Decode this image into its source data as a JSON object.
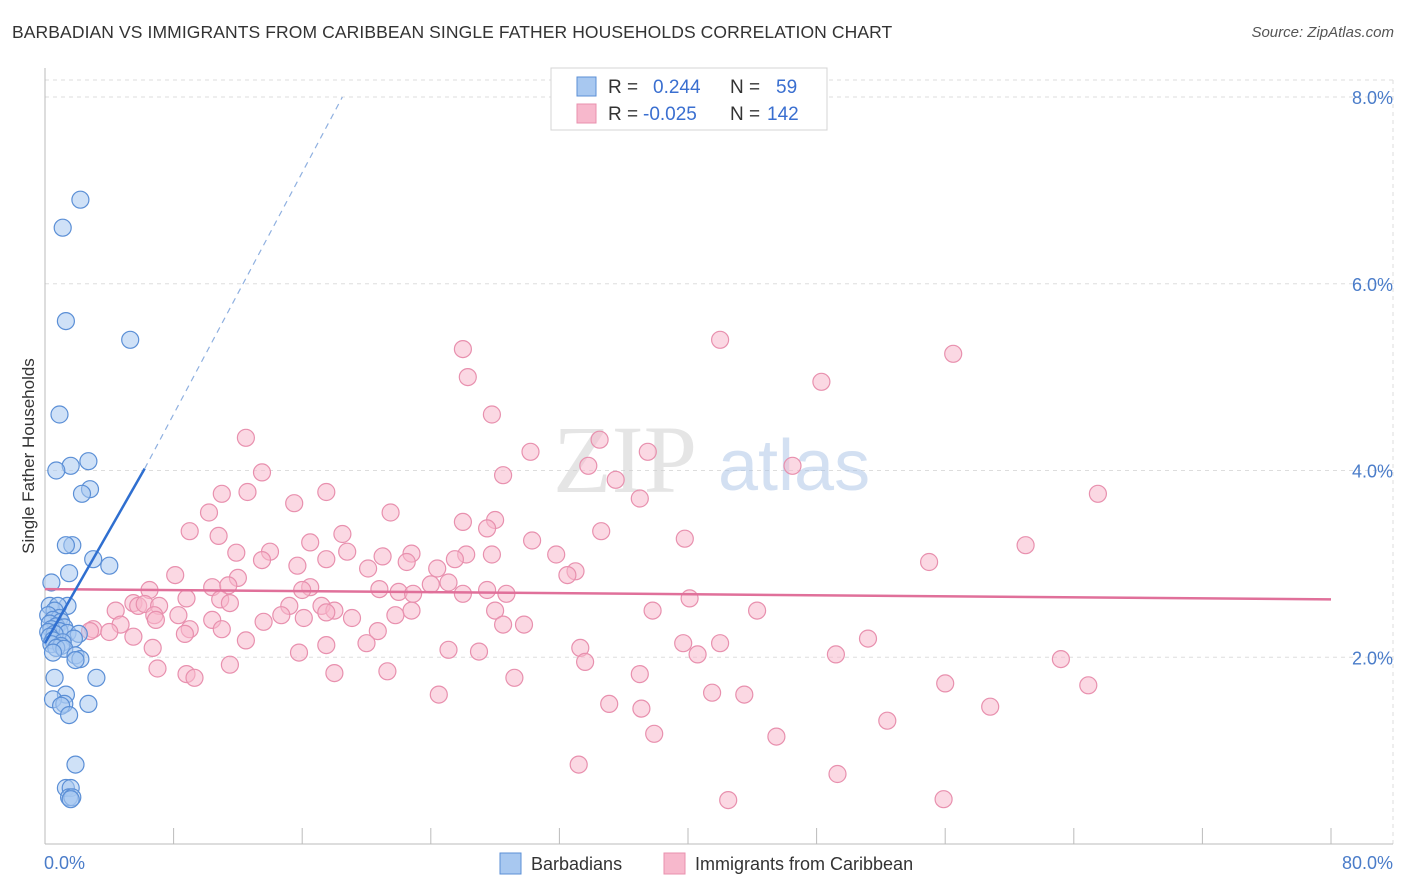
{
  "header": {
    "title": "BARBADIAN VS IMMIGRANTS FROM CARIBBEAN SINGLE FATHER HOUSEHOLDS CORRELATION CHART",
    "source": "Source: ZipAtlas.com"
  },
  "watermark": {
    "zip": "ZIP",
    "atlas": "atlas"
  },
  "legend_top": {
    "rows": [
      {
        "r_label": "R =",
        "r_value": "0.244",
        "n_label": "N =",
        "n_value": "59"
      },
      {
        "r_label": "R =",
        "r_value": "-0.025",
        "n_label": "N =",
        "n_value": "142"
      }
    ]
  },
  "colors": {
    "series_a_fill": "#a8c8f0",
    "series_a_stroke": "#5b8fd6",
    "series_a_line": "#2f6fd0",
    "series_b_fill": "#f7b8cc",
    "series_b_stroke": "#e890ae",
    "series_b_line": "#e0709a",
    "grid": "#dddddd",
    "tick_text": "#4a7cc9"
  },
  "chart_data": {
    "type": "scatter",
    "title": "BARBADIAN VS IMMIGRANTS FROM CARIBBEAN SINGLE FATHER HOUSEHOLDS CORRELATION CHART",
    "xlabel": "",
    "ylabel": "Single Father Households",
    "xlim": [
      0,
      80
    ],
    "ylim": [
      0,
      8.4
    ],
    "x_tick_labels": [
      "0.0%",
      "80.0%"
    ],
    "y_ticks": [
      2,
      4,
      6,
      8
    ],
    "y_tick_labels": [
      "2.0%",
      "4.0%",
      "6.0%",
      "8.0%"
    ],
    "grid": true,
    "legend_position": "bottom",
    "series": [
      {
        "name": "Barbadians",
        "r": 0.244,
        "n": 59,
        "trend": {
          "x": [
            0,
            6.2
          ],
          "y": [
            2.15,
            4.02
          ],
          "extended_to": [
            18.5,
            8.0
          ]
        },
        "points": [
          [
            2.2,
            6.9
          ],
          [
            1.1,
            6.6
          ],
          [
            1.3,
            5.6
          ],
          [
            5.3,
            5.4
          ],
          [
            0.9,
            4.6
          ],
          [
            2.7,
            4.1
          ],
          [
            1.6,
            4.05
          ],
          [
            0.7,
            4.0
          ],
          [
            2.8,
            3.8
          ],
          [
            2.3,
            3.75
          ],
          [
            1.7,
            3.2
          ],
          [
            1.3,
            3.2
          ],
          [
            3.0,
            3.05
          ],
          [
            4.0,
            2.98
          ],
          [
            1.5,
            2.9
          ],
          [
            0.4,
            2.8
          ],
          [
            1.4,
            2.55
          ],
          [
            0.3,
            2.55
          ],
          [
            0.8,
            2.55
          ],
          [
            0.6,
            2.5
          ],
          [
            0.2,
            2.45
          ],
          [
            0.9,
            2.42
          ],
          [
            0.5,
            2.4
          ],
          [
            1.0,
            2.38
          ],
          [
            0.3,
            2.36
          ],
          [
            0.7,
            2.33
          ],
          [
            1.2,
            2.32
          ],
          [
            0.4,
            2.3
          ],
          [
            0.9,
            2.28
          ],
          [
            0.2,
            2.27
          ],
          [
            1.4,
            2.26
          ],
          [
            0.6,
            2.25
          ],
          [
            2.1,
            2.25
          ],
          [
            0.3,
            2.22
          ],
          [
            1.8,
            2.2
          ],
          [
            0.5,
            2.18
          ],
          [
            1.1,
            2.16
          ],
          [
            0.4,
            2.14
          ],
          [
            1.0,
            2.12
          ],
          [
            0.7,
            2.1
          ],
          [
            1.2,
            2.09
          ],
          [
            0.5,
            2.05
          ],
          [
            1.9,
            2.02
          ],
          [
            2.2,
            1.98
          ],
          [
            1.9,
            1.97
          ],
          [
            0.6,
            1.78
          ],
          [
            3.2,
            1.78
          ],
          [
            1.3,
            1.6
          ],
          [
            0.5,
            1.55
          ],
          [
            2.7,
            1.5
          ],
          [
            1.2,
            1.5
          ],
          [
            1.0,
            1.48
          ],
          [
            1.5,
            1.38
          ],
          [
            1.9,
            0.85
          ],
          [
            1.3,
            0.6
          ],
          [
            1.6,
            0.6
          ],
          [
            1.5,
            0.5
          ],
          [
            1.7,
            0.5
          ],
          [
            1.6,
            0.48
          ]
        ]
      },
      {
        "name": "Immigrants from Caribbean",
        "r": -0.025,
        "n": 142,
        "trend": {
          "x": [
            0,
            80
          ],
          "y": [
            2.73,
            2.62
          ]
        },
        "points": [
          [
            26.0,
            5.3
          ],
          [
            42.0,
            5.4
          ],
          [
            56.5,
            5.25
          ],
          [
            26.3,
            5.0
          ],
          [
            48.3,
            4.95
          ],
          [
            27.8,
            4.6
          ],
          [
            12.5,
            4.35
          ],
          [
            34.5,
            4.33
          ],
          [
            30.2,
            4.2
          ],
          [
            37.5,
            4.2
          ],
          [
            33.8,
            4.05
          ],
          [
            46.5,
            4.05
          ],
          [
            13.5,
            3.98
          ],
          [
            28.5,
            3.95
          ],
          [
            35.5,
            3.9
          ],
          [
            11.0,
            3.75
          ],
          [
            17.5,
            3.77
          ],
          [
            12.6,
            3.77
          ],
          [
            65.5,
            3.75
          ],
          [
            37.0,
            3.7
          ],
          [
            15.5,
            3.65
          ],
          [
            10.2,
            3.55
          ],
          [
            21.5,
            3.55
          ],
          [
            26.0,
            3.45
          ],
          [
            28.0,
            3.47
          ],
          [
            9.0,
            3.35
          ],
          [
            10.8,
            3.3
          ],
          [
            18.5,
            3.32
          ],
          [
            27.5,
            3.38
          ],
          [
            34.6,
            3.35
          ],
          [
            39.8,
            3.27
          ],
          [
            16.5,
            3.23
          ],
          [
            30.3,
            3.25
          ],
          [
            61.0,
            3.2
          ],
          [
            14.0,
            3.13
          ],
          [
            18.8,
            3.13
          ],
          [
            11.9,
            3.12
          ],
          [
            22.8,
            3.11
          ],
          [
            21.0,
            3.08
          ],
          [
            26.2,
            3.1
          ],
          [
            17.5,
            3.05
          ],
          [
            27.8,
            3.1
          ],
          [
            31.8,
            3.1
          ],
          [
            25.5,
            3.05
          ],
          [
            22.5,
            3.02
          ],
          [
            15.7,
            2.98
          ],
          [
            13.5,
            3.04
          ],
          [
            20.1,
            2.95
          ],
          [
            55.0,
            3.02
          ],
          [
            33.0,
            2.92
          ],
          [
            24.4,
            2.95
          ],
          [
            32.5,
            2.88
          ],
          [
            8.1,
            2.88
          ],
          [
            12.0,
            2.85
          ],
          [
            25.1,
            2.8
          ],
          [
            16.5,
            2.75
          ],
          [
            24.0,
            2.78
          ],
          [
            16.0,
            2.72
          ],
          [
            6.5,
            2.72
          ],
          [
            10.4,
            2.75
          ],
          [
            11.4,
            2.77
          ],
          [
            20.8,
            2.73
          ],
          [
            27.5,
            2.72
          ],
          [
            22.0,
            2.7
          ],
          [
            22.9,
            2.68
          ],
          [
            26.0,
            2.68
          ],
          [
            28.7,
            2.68
          ],
          [
            8.8,
            2.63
          ],
          [
            40.1,
            2.63
          ],
          [
            5.5,
            2.58
          ],
          [
            10.9,
            2.62
          ],
          [
            11.5,
            2.58
          ],
          [
            4.4,
            2.5
          ],
          [
            5.8,
            2.55
          ],
          [
            6.2,
            2.57
          ],
          [
            7.1,
            2.55
          ],
          [
            15.2,
            2.55
          ],
          [
            17.2,
            2.55
          ],
          [
            18.0,
            2.5
          ],
          [
            22.8,
            2.5
          ],
          [
            28.0,
            2.5
          ],
          [
            37.8,
            2.5
          ],
          [
            44.3,
            2.5
          ],
          [
            14.7,
            2.45
          ],
          [
            17.5,
            2.48
          ],
          [
            21.8,
            2.45
          ],
          [
            8.3,
            2.45
          ],
          [
            6.8,
            2.45
          ],
          [
            10.4,
            2.4
          ],
          [
            13.6,
            2.38
          ],
          [
            4.7,
            2.35
          ],
          [
            6.9,
            2.4
          ],
          [
            16.1,
            2.42
          ],
          [
            19.1,
            2.42
          ],
          [
            28.5,
            2.35
          ],
          [
            29.8,
            2.35
          ],
          [
            9.0,
            2.3
          ],
          [
            3.0,
            2.3
          ],
          [
            2.8,
            2.28
          ],
          [
            4.0,
            2.27
          ],
          [
            8.7,
            2.25
          ],
          [
            20.7,
            2.28
          ],
          [
            5.5,
            2.22
          ],
          [
            12.5,
            2.18
          ],
          [
            17.5,
            2.13
          ],
          [
            20.0,
            2.15
          ],
          [
            33.3,
            2.1
          ],
          [
            42.0,
            2.15
          ],
          [
            51.2,
            2.2
          ],
          [
            39.7,
            2.15
          ],
          [
            6.7,
            2.1
          ],
          [
            15.8,
            2.05
          ],
          [
            25.1,
            2.08
          ],
          [
            27.0,
            2.06
          ],
          [
            40.6,
            2.03
          ],
          [
            49.2,
            2.03
          ],
          [
            63.2,
            1.98
          ],
          [
            33.6,
            1.95
          ],
          [
            11.5,
            1.92
          ],
          [
            7.0,
            1.88
          ],
          [
            21.3,
            1.85
          ],
          [
            18.0,
            1.83
          ],
          [
            8.8,
            1.82
          ],
          [
            9.3,
            1.78
          ],
          [
            29.2,
            1.78
          ],
          [
            37.0,
            1.82
          ],
          [
            56.0,
            1.72
          ],
          [
            64.9,
            1.7
          ],
          [
            24.5,
            1.6
          ],
          [
            41.5,
            1.62
          ],
          [
            43.5,
            1.6
          ],
          [
            35.1,
            1.5
          ],
          [
            37.1,
            1.45
          ],
          [
            58.8,
            1.47
          ],
          [
            52.4,
            1.32
          ],
          [
            37.9,
            1.18
          ],
          [
            45.5,
            1.15
          ],
          [
            33.2,
            0.85
          ],
          [
            49.3,
            0.75
          ],
          [
            42.5,
            0.47
          ],
          [
            55.9,
            0.48
          ],
          [
            11.0,
            2.3
          ]
        ]
      }
    ]
  },
  "axes": {
    "ylabel": "Single Father Households",
    "x_left": "0.0%",
    "x_right": "80.0%",
    "y_labels": [
      "2.0%",
      "4.0%",
      "6.0%",
      "8.0%"
    ]
  },
  "legend_bottom": {
    "items": [
      "Barbadians",
      "Immigrants from Caribbean"
    ]
  }
}
